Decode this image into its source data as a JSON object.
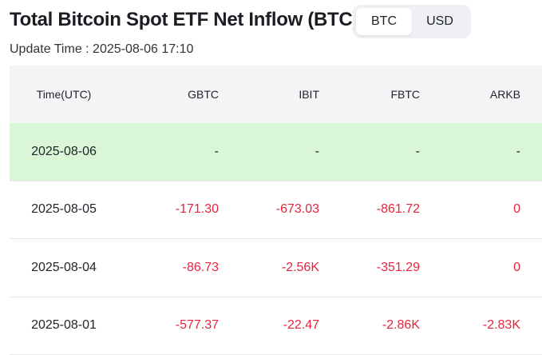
{
  "header": {
    "title": "Total Bitcoin Spot ETF Net Inflow (BTC)",
    "toggle": [
      "BTC",
      "USD"
    ],
    "active": "BTC"
  },
  "update_time": "Update Time : 2025-08-06 17:10",
  "table": {
    "columns": [
      "Time(UTC)",
      "GBTC",
      "IBIT",
      "FBTC",
      "ARKB"
    ],
    "rows": [
      {
        "time": "2025-08-06",
        "values": [
          "-",
          "-",
          "-",
          "-"
        ],
        "highlight": true
      },
      {
        "time": "2025-08-05",
        "values": [
          "-171.30",
          "-673.03",
          "-861.72",
          "0"
        ]
      },
      {
        "time": "2025-08-04",
        "values": [
          "-86.73",
          "-2.56K",
          "-351.29",
          "0"
        ]
      },
      {
        "time": "2025-08-01",
        "values": [
          "-577.37",
          "-22.47",
          "-2.86K",
          "-2.83K"
        ]
      }
    ]
  },
  "colors": {
    "negative": "#e8243c",
    "highlight_row": "#d9f7d6",
    "header_bg": "#f4f5f7"
  }
}
